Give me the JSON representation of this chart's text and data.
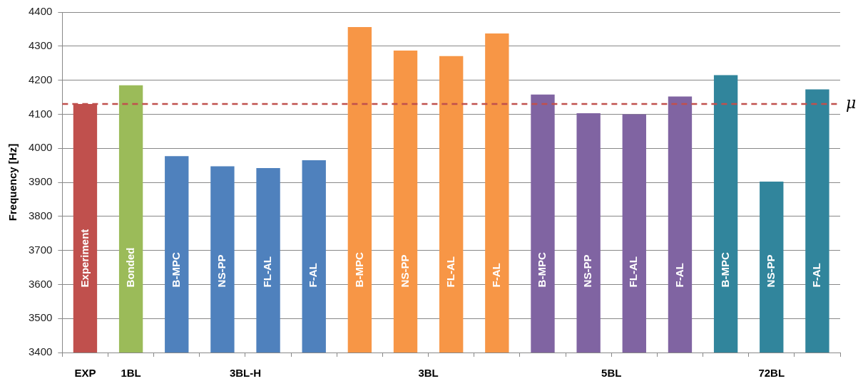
{
  "chart_data": {
    "type": "bar",
    "ylabel": "Frequency [Hz]",
    "categories": [
      "Experiment",
      "Bonded",
      "B-MPC",
      "NS-PP",
      "FL-AL",
      "F-AL",
      "B-MPC",
      "NS-PP",
      "FL-AL",
      "F-AL",
      "B-MPC",
      "NS-PP",
      "FL-AL",
      "F-AL",
      "B-MPC",
      "NS-PP",
      "F-AL"
    ],
    "series": [
      {
        "name": "EXP",
        "color": "#c0504d",
        "values": [
          4130,
          null,
          null,
          null,
          null,
          null,
          null,
          null,
          null,
          null,
          null,
          null,
          null,
          null,
          null,
          null,
          null
        ]
      },
      {
        "name": "1BL",
        "color": "#9bbb59",
        "values": [
          null,
          4185,
          null,
          null,
          null,
          null,
          null,
          null,
          null,
          null,
          null,
          null,
          null,
          null,
          null,
          null,
          null
        ]
      },
      {
        "name": "3BL-H",
        "color": "#4f81bd",
        "values": [
          null,
          null,
          3977,
          3947,
          3942,
          3965,
          null,
          null,
          null,
          null,
          null,
          null,
          null,
          null,
          null,
          null,
          null
        ]
      },
      {
        "name": "3BL",
        "color": "#f79646",
        "values": [
          null,
          null,
          null,
          null,
          null,
          null,
          4356,
          4287,
          4271,
          4337,
          null,
          null,
          null,
          null,
          null,
          null,
          null
        ]
      },
      {
        "name": "5BL",
        "color": "#8064a2",
        "values": [
          null,
          null,
          null,
          null,
          null,
          null,
          null,
          null,
          null,
          null,
          4158,
          4103,
          4100,
          4152,
          null,
          null,
          null
        ]
      },
      {
        "name": "72BL",
        "color": "#31859c",
        "values": [
          null,
          null,
          null,
          null,
          null,
          null,
          null,
          null,
          null,
          null,
          null,
          null,
          null,
          null,
          4215,
          3902,
          4173
        ]
      }
    ],
    "ylim": [
      3400,
      4400
    ],
    "yticks": [
      3400,
      3500,
      3600,
      3700,
      3800,
      3900,
      4000,
      4100,
      4200,
      4300,
      4400
    ],
    "grid": "y",
    "legend": false,
    "ref_lines": [
      {
        "axis": "y",
        "value": 4130,
        "label": "μ",
        "color": "#c0504d",
        "line_style": "dashed"
      }
    ]
  }
}
